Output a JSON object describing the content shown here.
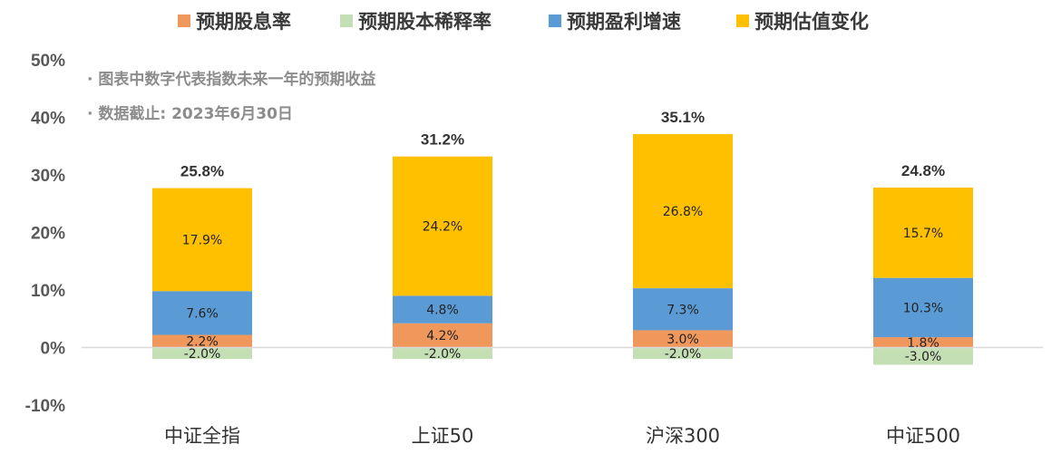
{
  "chart_data": {
    "type": "bar",
    "stacked": true,
    "categories": [
      "中证全指",
      "上证50",
      "沪深300",
      "中证500"
    ],
    "series": [
      {
        "name": "预期股息率",
        "color": "#F0975C",
        "values": [
          2.2,
          4.2,
          3.0,
          1.8
        ]
      },
      {
        "name": "预期股本稀释率",
        "color": "#C5DFB4",
        "values": [
          -2.0,
          -2.0,
          -2.0,
          -3.0
        ]
      },
      {
        "name": "预期盈利增速",
        "color": "#5B9BD5",
        "values": [
          7.6,
          4.8,
          7.3,
          10.3
        ]
      },
      {
        "name": "预期估值变化",
        "color": "#FFC000",
        "values": [
          17.9,
          24.2,
          26.8,
          15.7
        ]
      }
    ],
    "stack_order": [
      0,
      2,
      3
    ],
    "segment_labels": [
      [
        "2.2%",
        "4.2%",
        "3.0%",
        "1.8%"
      ],
      [
        "-2.0%",
        "-2.0%",
        "-2.0%",
        "-3.0%"
      ],
      [
        "7.6%",
        "4.8%",
        "7.3%",
        "10.3%"
      ],
      [
        "17.9%",
        "24.2%",
        "26.8%",
        "15.7%"
      ]
    ],
    "totals": [
      25.8,
      31.2,
      35.1,
      24.8
    ],
    "total_labels": [
      "25.8%",
      "31.2%",
      "35.1%",
      "24.8%"
    ],
    "ylim": [
      -10,
      50
    ],
    "yticks": [
      50,
      40,
      30,
      20,
      10,
      0,
      -10
    ],
    "ytick_labels": [
      "50%",
      "40%",
      "30%",
      "20%",
      "10%",
      "0%",
      "-10%"
    ],
    "legend_position": "top",
    "grid": false,
    "notes": [
      "· 图表中数字代表指数未来一年的预期收益",
      "· 数据截止: 2023年6月30日"
    ]
  }
}
